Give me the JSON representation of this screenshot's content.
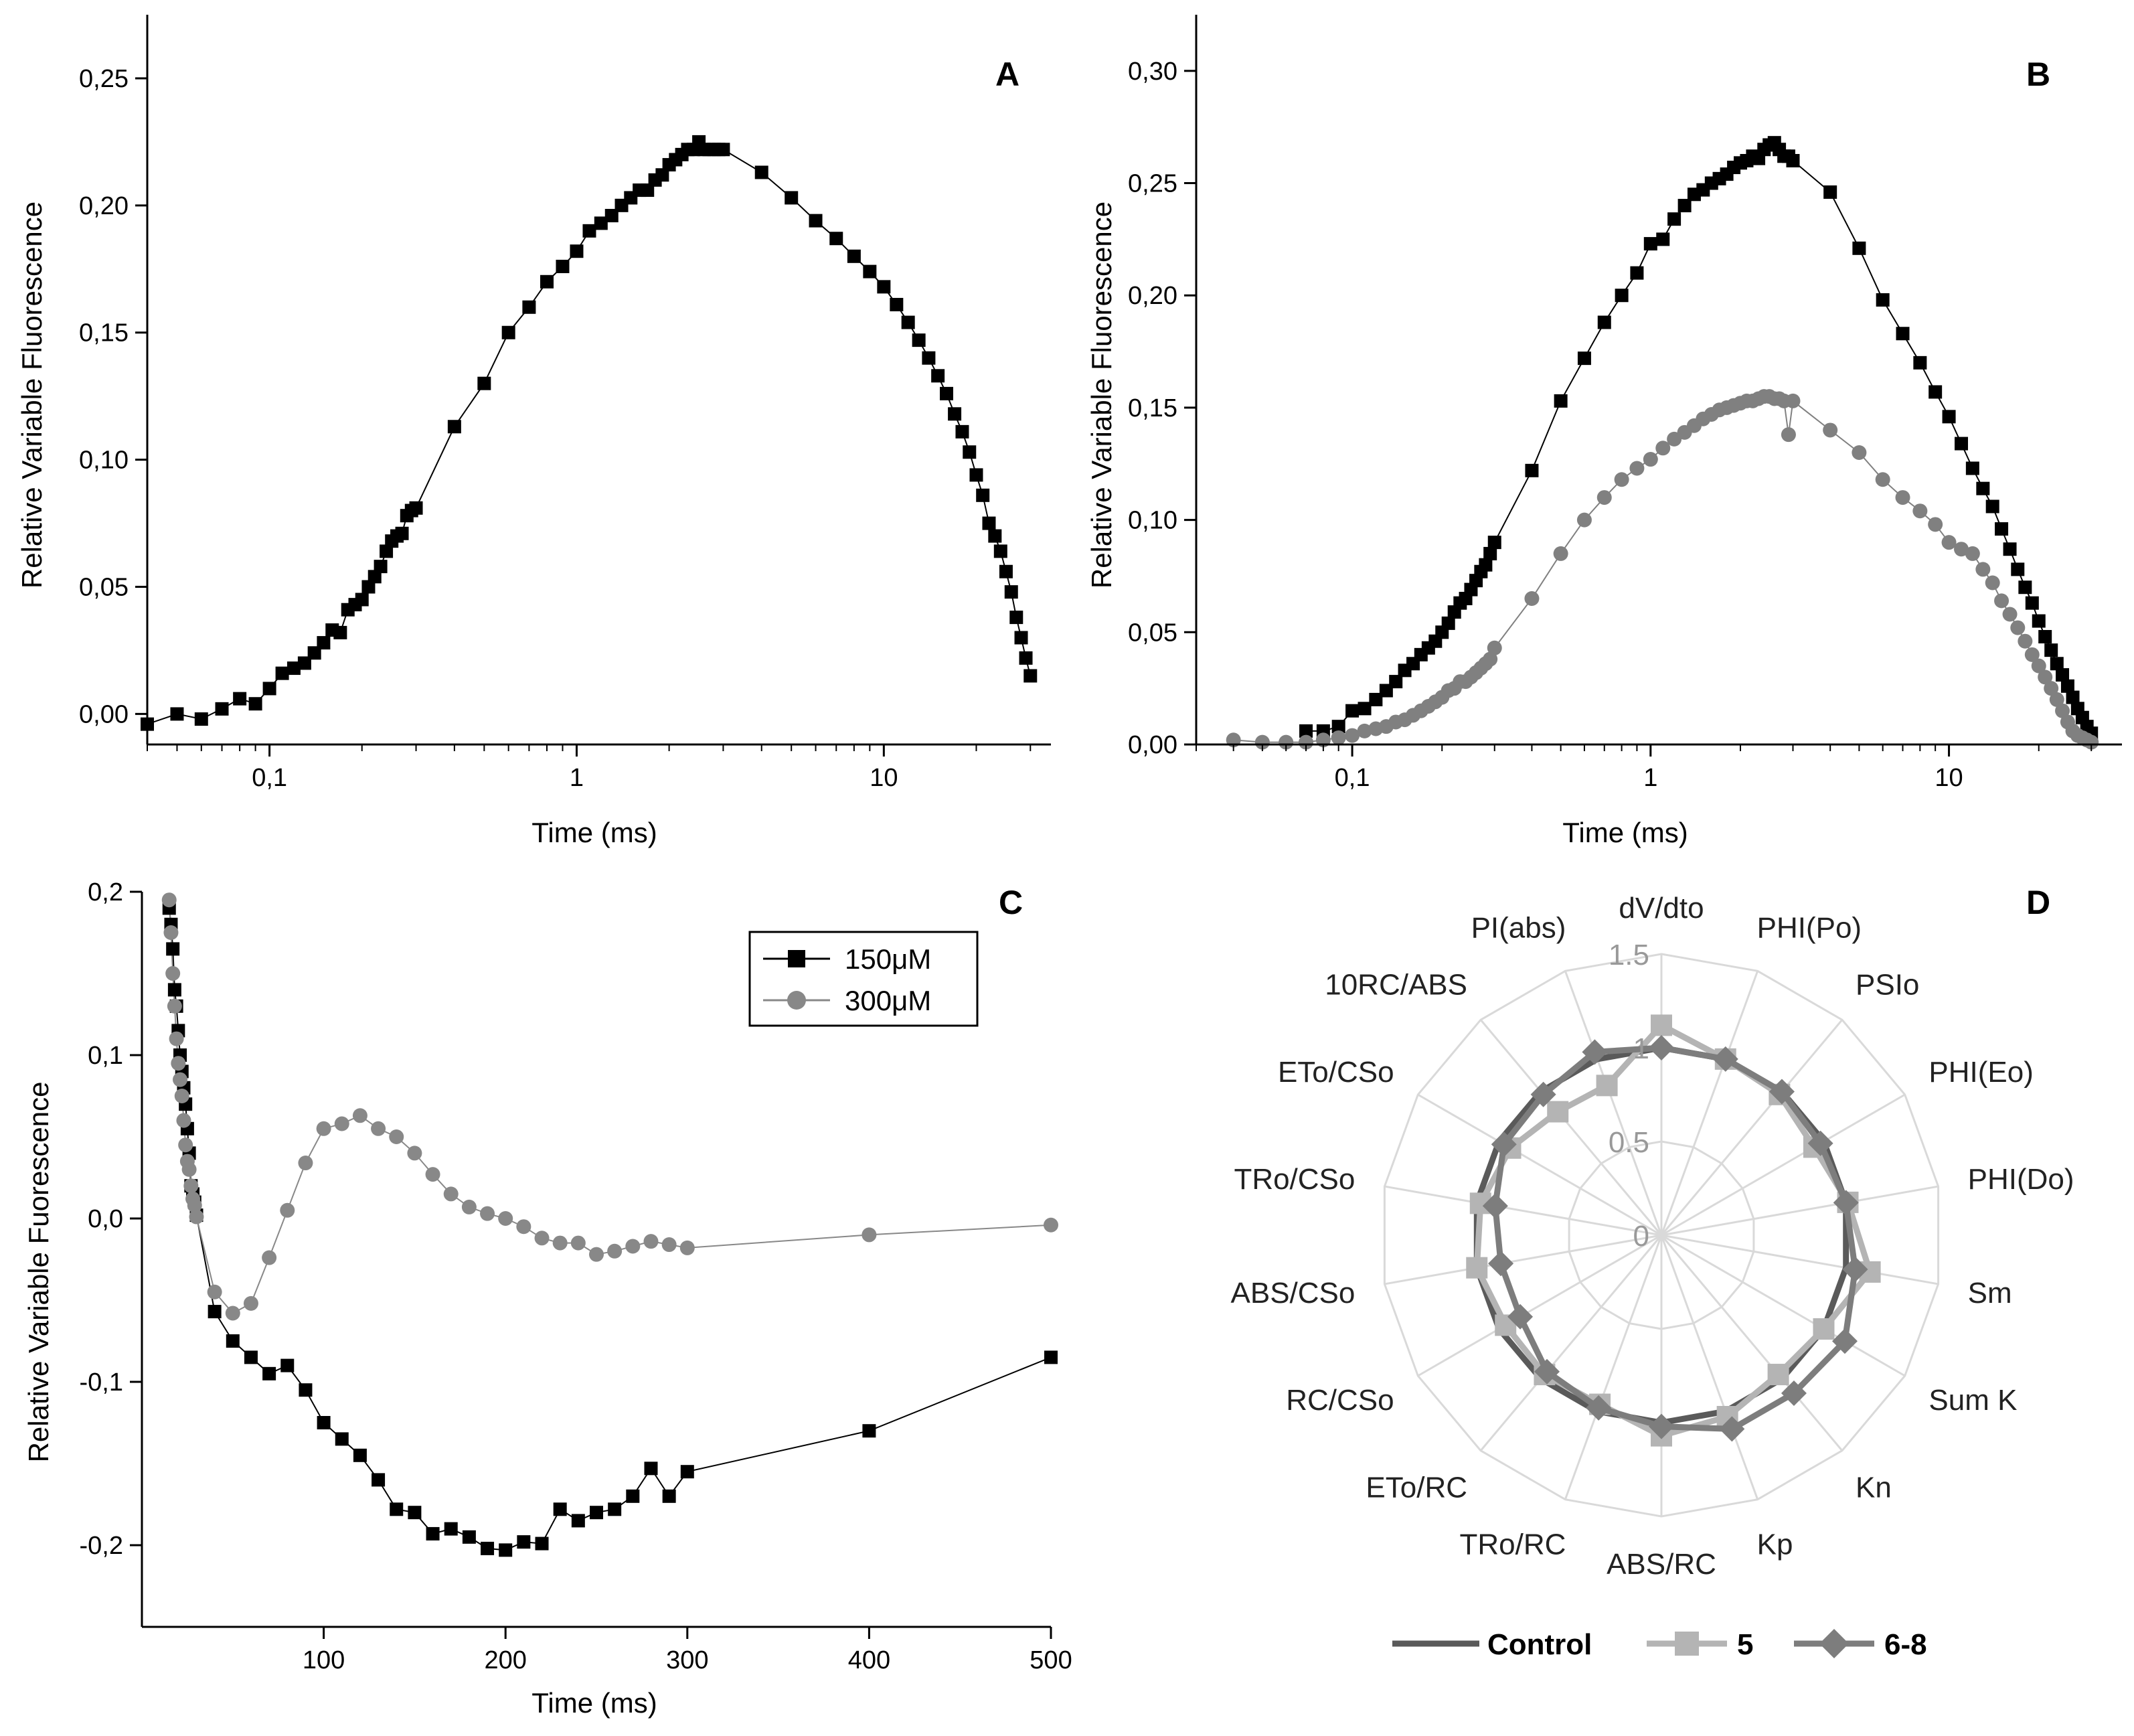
{
  "chart_data": [
    {
      "panel": "A",
      "type": "scatter",
      "xlabel": "Time (ms)",
      "ylabel": "Relative Variable Fluorescence",
      "xscale": "log",
      "xlim": [
        0.04,
        35
      ],
      "ylim": [
        -0.012,
        0.275
      ],
      "xticks": [
        {
          "v": 0.1,
          "label": "0,1"
        },
        {
          "v": 1,
          "label": "1"
        },
        {
          "v": 10,
          "label": "10"
        }
      ],
      "yticks": [
        {
          "v": 0,
          "label": "0,00"
        },
        {
          "v": 0.05,
          "label": "0,05"
        },
        {
          "v": 0.1,
          "label": "0,10"
        },
        {
          "v": 0.15,
          "label": "0,15"
        },
        {
          "v": 0.2,
          "label": "0,20"
        },
        {
          "v": 0.25,
          "label": "0,25"
        }
      ],
      "series": [
        {
          "name": "",
          "color": "#000000",
          "marker": "square",
          "x": [
            0.04,
            0.05,
            0.06,
            0.07,
            0.08,
            0.09,
            0.1,
            0.11,
            0.12,
            0.13,
            0.14,
            0.15,
            0.16,
            0.17,
            0.18,
            0.19,
            0.2,
            0.21,
            0.22,
            0.23,
            0.24,
            0.25,
            0.26,
            0.27,
            0.28,
            0.29,
            0.3,
            0.4,
            0.5,
            0.6,
            0.7,
            0.8,
            0.9,
            1.0,
            1.1,
            1.2,
            1.3,
            1.4,
            1.5,
            1.6,
            1.7,
            1.8,
            1.9,
            2.0,
            2.1,
            2.2,
            2.3,
            2.4,
            2.5,
            2.6,
            2.7,
            2.8,
            2.9,
            3.0,
            4,
            5,
            6,
            7,
            8,
            9,
            10,
            11,
            12,
            13,
            14,
            15,
            16,
            17,
            18,
            19,
            20,
            21,
            22,
            23,
            24,
            25,
            26,
            27,
            28,
            29,
            30
          ],
          "y": [
            -0.004,
            0.0,
            -0.002,
            0.002,
            0.006,
            0.004,
            0.01,
            0.016,
            0.018,
            0.02,
            0.024,
            0.028,
            0.033,
            0.032,
            0.041,
            0.043,
            0.045,
            0.05,
            0.054,
            0.058,
            0.064,
            0.068,
            0.07,
            0.071,
            0.078,
            0.08,
            0.081,
            0.113,
            0.13,
            0.15,
            0.16,
            0.17,
            0.176,
            0.182,
            0.19,
            0.193,
            0.196,
            0.2,
            0.203,
            0.206,
            0.206,
            0.21,
            0.212,
            0.216,
            0.218,
            0.22,
            0.222,
            0.222,
            0.225,
            0.222,
            0.222,
            0.222,
            0.222,
            0.222,
            0.213,
            0.203,
            0.194,
            0.187,
            0.18,
            0.174,
            0.168,
            0.161,
            0.154,
            0.147,
            0.14,
            0.133,
            0.126,
            0.118,
            0.111,
            0.103,
            0.094,
            0.086,
            0.075,
            0.07,
            0.064,
            0.056,
            0.048,
            0.038,
            0.03,
            0.022,
            0.015
          ]
        }
      ]
    },
    {
      "panel": "B",
      "type": "scatter",
      "xlabel": "Time (ms)",
      "ylabel": "Relative Variable Fluorescence",
      "xscale": "log",
      "xlim": [
        0.03,
        38
      ],
      "ylim": [
        0.0,
        0.325
      ],
      "xticks": [
        {
          "v": 0.1,
          "label": "0,1"
        },
        {
          "v": 1,
          "label": "1"
        },
        {
          "v": 10,
          "label": "10"
        }
      ],
      "yticks": [
        {
          "v": 0,
          "label": "0,00"
        },
        {
          "v": 0.05,
          "label": "0,05"
        },
        {
          "v": 0.1,
          "label": "0,10"
        },
        {
          "v": 0.15,
          "label": "0,15"
        },
        {
          "v": 0.2,
          "label": "0,20"
        },
        {
          "v": 0.25,
          "label": "0,25"
        },
        {
          "v": 0.3,
          "label": "0,30"
        }
      ],
      "series": [
        {
          "name": "",
          "color": "#000000",
          "marker": "square",
          "x": [
            0.07,
            0.08,
            0.09,
            0.1,
            0.11,
            0.12,
            0.13,
            0.14,
            0.15,
            0.16,
            0.17,
            0.18,
            0.19,
            0.2,
            0.21,
            0.22,
            0.23,
            0.24,
            0.25,
            0.26,
            0.27,
            0.28,
            0.29,
            0.3,
            0.4,
            0.5,
            0.6,
            0.7,
            0.8,
            0.9,
            1.0,
            1.1,
            1.2,
            1.3,
            1.4,
            1.5,
            1.6,
            1.7,
            1.8,
            1.9,
            2.0,
            2.1,
            2.2,
            2.3,
            2.4,
            2.5,
            2.6,
            2.7,
            2.8,
            2.9,
            3.0,
            4,
            5,
            6,
            7,
            8,
            9,
            10,
            11,
            12,
            13,
            14,
            15,
            16,
            17,
            18,
            19,
            20,
            21,
            22,
            23,
            24,
            25,
            26,
            27,
            28,
            29,
            30
          ],
          "y": [
            0.006,
            0.006,
            0.008,
            0.015,
            0.016,
            0.02,
            0.024,
            0.028,
            0.033,
            0.036,
            0.04,
            0.043,
            0.046,
            0.05,
            0.054,
            0.059,
            0.063,
            0.065,
            0.069,
            0.073,
            0.077,
            0.08,
            0.085,
            0.09,
            0.122,
            0.153,
            0.172,
            0.188,
            0.2,
            0.21,
            0.223,
            0.225,
            0.234,
            0.24,
            0.245,
            0.247,
            0.25,
            0.252,
            0.254,
            0.257,
            0.259,
            0.26,
            0.262,
            0.261,
            0.265,
            0.267,
            0.268,
            0.265,
            0.262,
            0.262,
            0.26,
            0.246,
            0.221,
            0.198,
            0.183,
            0.17,
            0.157,
            0.146,
            0.134,
            0.123,
            0.114,
            0.106,
            0.096,
            0.087,
            0.078,
            0.07,
            0.063,
            0.055,
            0.048,
            0.042,
            0.036,
            0.031,
            0.026,
            0.021,
            0.016,
            0.012,
            0.008,
            0.005
          ]
        },
        {
          "name": "",
          "color": "#808080",
          "marker": "circle",
          "x": [
            0.04,
            0.05,
            0.06,
            0.07,
            0.08,
            0.09,
            0.1,
            0.11,
            0.12,
            0.13,
            0.14,
            0.15,
            0.16,
            0.17,
            0.18,
            0.19,
            0.2,
            0.21,
            0.22,
            0.23,
            0.24,
            0.25,
            0.26,
            0.27,
            0.28,
            0.29,
            0.3,
            0.4,
            0.5,
            0.6,
            0.7,
            0.8,
            0.9,
            1.0,
            1.1,
            1.2,
            1.3,
            1.4,
            1.5,
            1.6,
            1.7,
            1.8,
            1.9,
            2.0,
            2.1,
            2.2,
            2.3,
            2.4,
            2.5,
            2.6,
            2.7,
            2.8,
            2.9,
            3.0,
            4,
            5,
            6,
            7,
            8,
            9,
            10,
            11,
            12,
            13,
            14,
            15,
            16,
            17,
            18,
            19,
            20,
            21,
            22,
            23,
            24,
            25,
            26,
            27,
            28,
            29,
            30
          ],
          "y": [
            0.002,
            0.001,
            0.001,
            0.001,
            0.002,
            0.003,
            0.004,
            0.006,
            0.007,
            0.008,
            0.01,
            0.011,
            0.013,
            0.015,
            0.017,
            0.019,
            0.021,
            0.024,
            0.025,
            0.028,
            0.028,
            0.03,
            0.032,
            0.034,
            0.036,
            0.038,
            0.043,
            0.065,
            0.085,
            0.1,
            0.11,
            0.118,
            0.123,
            0.127,
            0.132,
            0.136,
            0.139,
            0.142,
            0.145,
            0.147,
            0.149,
            0.15,
            0.151,
            0.152,
            0.153,
            0.153,
            0.154,
            0.155,
            0.155,
            0.154,
            0.154,
            0.153,
            0.138,
            0.153,
            0.14,
            0.13,
            0.118,
            0.11,
            0.104,
            0.098,
            0.09,
            0.087,
            0.085,
            0.078,
            0.072,
            0.064,
            0.058,
            0.052,
            0.046,
            0.04,
            0.035,
            0.03,
            0.025,
            0.02,
            0.015,
            0.01,
            0.006,
            0.004,
            0.003,
            0.002,
            0.001
          ]
        }
      ]
    },
    {
      "panel": "C",
      "type": "line",
      "xlabel": "Time (ms)",
      "ylabel": "Relative Variable Fuorescence",
      "xlim": [
        0,
        500
      ],
      "ylim": [
        -0.25,
        0.2
      ],
      "xticks": [
        {
          "v": 100,
          "label": "100"
        },
        {
          "v": 200,
          "label": "200"
        },
        {
          "v": 300,
          "label": "300"
        },
        {
          "v": 400,
          "label": "400"
        },
        {
          "v": 500,
          "label": "500"
        }
      ],
      "yticks": [
        {
          "v": 0.2,
          "label": "0,2"
        },
        {
          "v": 0.1,
          "label": "0,1"
        },
        {
          "v": 0.0,
          "label": "0,0"
        },
        {
          "v": -0.1,
          "label": "-0,1"
        },
        {
          "v": -0.2,
          "label": "-0,2"
        }
      ],
      "legend": "top-right",
      "series": [
        {
          "name": "150μM",
          "color": "#000000",
          "marker": "square",
          "x": [
            15,
            16,
            17,
            18,
            19,
            20,
            21,
            22,
            23,
            24,
            25,
            26,
            27,
            28,
            29,
            30,
            40,
            50,
            60,
            70,
            80,
            90,
            100,
            110,
            120,
            130,
            140,
            150,
            160,
            170,
            180,
            190,
            200,
            210,
            220,
            230,
            240,
            250,
            260,
            270,
            280,
            290,
            300,
            400,
            500
          ],
          "y": [
            0.19,
            0.18,
            0.165,
            0.14,
            0.13,
            0.115,
            0.1,
            0.09,
            0.08,
            0.07,
            0.055,
            0.04,
            0.02,
            0.015,
            0.01,
            0.002,
            -0.057,
            -0.075,
            -0.085,
            -0.095,
            -0.09,
            -0.105,
            -0.125,
            -0.135,
            -0.145,
            -0.16,
            -0.178,
            -0.18,
            -0.193,
            -0.19,
            -0.195,
            -0.202,
            -0.203,
            -0.198,
            -0.199,
            -0.178,
            -0.185,
            -0.18,
            -0.178,
            -0.17,
            -0.153,
            -0.17,
            -0.155,
            -0.13,
            -0.085
          ]
        },
        {
          "name": "300μM",
          "color": "#888888",
          "marker": "circle",
          "x": [
            15,
            16,
            17,
            18,
            19,
            20,
            21,
            22,
            23,
            24,
            25,
            26,
            27,
            28,
            29,
            30,
            40,
            50,
            60,
            70,
            80,
            90,
            100,
            110,
            120,
            130,
            140,
            150,
            160,
            170,
            180,
            190,
            200,
            210,
            220,
            230,
            240,
            250,
            260,
            270,
            280,
            290,
            300,
            400,
            500
          ],
          "y": [
            0.195,
            0.175,
            0.15,
            0.13,
            0.11,
            0.095,
            0.085,
            0.075,
            0.06,
            0.045,
            0.035,
            0.03,
            0.02,
            0.012,
            0.008,
            0.001,
            -0.045,
            -0.058,
            -0.052,
            -0.024,
            0.005,
            0.034,
            0.055,
            0.058,
            0.063,
            0.055,
            0.05,
            0.04,
            0.027,
            0.015,
            0.007,
            0.003,
            0.0,
            -0.005,
            -0.012,
            -0.015,
            -0.015,
            -0.022,
            -0.02,
            -0.017,
            -0.014,
            -0.016,
            -0.018,
            -0.01,
            -0.004
          ]
        }
      ]
    },
    {
      "panel": "D",
      "type": "radar",
      "axes": [
        "dV/dto",
        "PHI(Po)",
        "PSIo",
        "PHI(Eo)",
        "PHI(Do)",
        "Sm",
        "Sum K",
        "Kn",
        "Kp",
        "ABS/RC",
        "TRo/RC",
        "ETo/RC",
        "RC/CSo",
        "ABS/CSo",
        "TRo/CSo",
        "ETo/CSo",
        "10RC/ABS",
        "PI(abs)"
      ],
      "rticks": [
        {
          "v": 0,
          "label": "0"
        },
        {
          "v": 0.5,
          "label": "0.5"
        },
        {
          "v": 1,
          "label": "1"
        },
        {
          "v": 1.5,
          "label": "1.5"
        }
      ],
      "rmax": 1.5,
      "legend": "bottom",
      "series": [
        {
          "name": "Control",
          "color": "#5a5a5a",
          "marker": "none",
          "values": [
            1,
            1,
            1,
            1,
            1,
            1,
            1,
            1,
            1,
            1,
            1,
            1,
            1,
            1,
            1,
            1,
            1,
            1
          ]
        },
        {
          "name": "5",
          "color": "#b4b4b4",
          "marker": "square",
          "values": [
            1.12,
            1.0,
            0.98,
            0.94,
            1.01,
            1.13,
            1.0,
            0.97,
            1.03,
            1.07,
            0.96,
            0.97,
            0.96,
            1.0,
            0.98,
            0.93,
            0.86,
            0.85
          ]
        },
        {
          "name": "6-8",
          "color": "#7d7d7d",
          "marker": "diamond",
          "values": [
            1.0,
            1.0,
            1.0,
            0.98,
            1.0,
            1.05,
            1.13,
            1.1,
            1.1,
            1.02,
            0.98,
            0.95,
            0.87,
            0.87,
            0.9,
            0.97,
            0.98,
            1.04
          ]
        }
      ]
    }
  ],
  "labels": {
    "panel_a": "A",
    "panel_b": "B",
    "panel_c": "C",
    "panel_d": "D"
  },
  "colors": {
    "axis": "#000000",
    "grid": "#d9d9d9"
  }
}
